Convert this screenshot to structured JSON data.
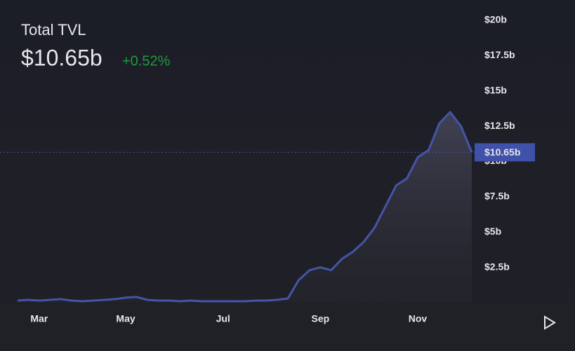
{
  "chart_data": {
    "type": "area",
    "title": "Total TVL",
    "value_label": "$10.65b",
    "change": "+0.52%",
    "categories": [
      null,
      null,
      "Mar",
      null,
      null,
      null,
      null,
      null,
      null,
      null,
      "May",
      null,
      null,
      null,
      null,
      null,
      null,
      null,
      null,
      "Jul",
      null,
      null,
      null,
      null,
      null,
      null,
      null,
      null,
      "Sep",
      null,
      null,
      null,
      null,
      null,
      null,
      null,
      null,
      "Nov",
      null,
      null,
      null,
      null,
      null
    ],
    "values": [
      0.15,
      0.2,
      0.15,
      0.2,
      0.25,
      0.15,
      0.1,
      0.15,
      0.2,
      0.25,
      0.35,
      0.4,
      0.2,
      0.15,
      0.15,
      0.1,
      0.15,
      0.1,
      0.1,
      0.1,
      0.1,
      0.1,
      0.15,
      0.15,
      0.2,
      0.3,
      1.6,
      2.3,
      2.5,
      2.3,
      3.1,
      3.6,
      4.3,
      5.3,
      6.8,
      8.3,
      8.8,
      10.3,
      10.8,
      12.7,
      13.5,
      12.5,
      10.65
    ],
    "color": "#4455a8",
    "ylim": [
      0,
      20
    ],
    "yticks": [
      {
        "value": 2.5,
        "label": "$2.5b"
      },
      {
        "value": 5,
        "label": "$5b"
      },
      {
        "value": 7.5,
        "label": "$7.5b"
      },
      {
        "value": 10,
        "label": "$10b"
      },
      {
        "value": 12.5,
        "label": "$12.5b"
      },
      {
        "value": 15,
        "label": "$15b"
      },
      {
        "value": 17.5,
        "label": "$17.5b"
      },
      {
        "value": 20,
        "label": "$20b"
      }
    ]
  }
}
